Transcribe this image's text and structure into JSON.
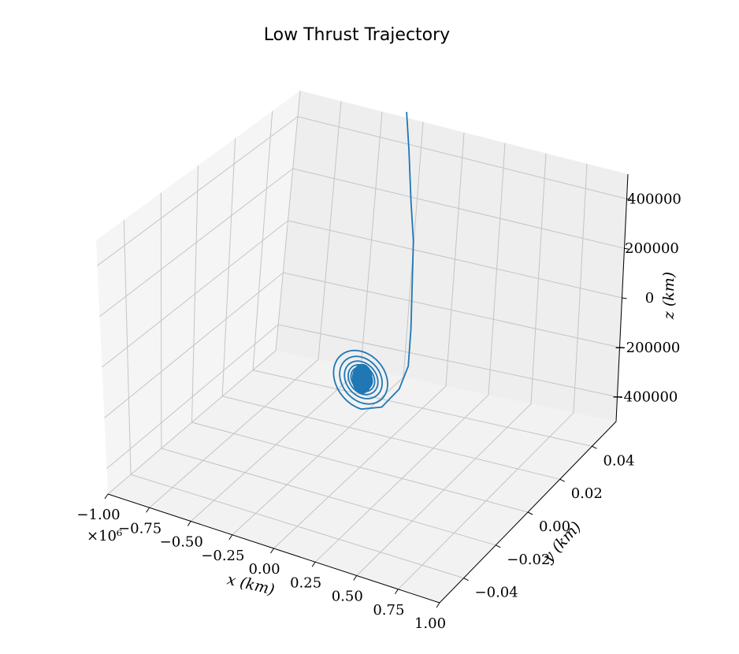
{
  "chart_data": {
    "type": "line3d",
    "title": "Low Thrust Trajectory",
    "xlabel": "x (km)",
    "ylabel": "y (km)",
    "zlabel": "z (km)",
    "x_offset_label": "×10⁶",
    "x_ticks": [
      -1.0,
      -0.75,
      -0.5,
      -0.25,
      0.0,
      0.25,
      0.5,
      0.75,
      1.0
    ],
    "x_tick_labels": [
      "−1.00",
      "−0.75",
      "−0.50",
      "−0.25",
      "0.00",
      "0.25",
      "0.50",
      "0.75",
      "1.00"
    ],
    "y_ticks": [
      -0.04,
      -0.02,
      0.0,
      0.02,
      0.04
    ],
    "y_tick_labels": [
      "−0.04",
      "−0.02",
      "0.00",
      "0.02",
      "0.04"
    ],
    "z_ticks": [
      -400000,
      -200000,
      0,
      200000,
      400000
    ],
    "z_tick_labels": [
      "−400000",
      "−200000",
      "0",
      "200000",
      "400000"
    ],
    "xlim": [
      -1.0,
      1.0
    ],
    "ylim": [
      -0.055,
      0.055
    ],
    "zlim": [
      -500000,
      500000
    ],
    "grid": true,
    "series": [
      {
        "color": "#1f77b4",
        "spiral": {
          "center_x": 0.0,
          "center_z": -150000,
          "start_rx": 0.04,
          "start_rz": 28000,
          "end_rx": 0.18,
          "end_rz": 120000,
          "turns": 10
        },
        "escape_leg": [
          {
            "x": 0.0,
            "z": -270000
          },
          {
            "x": 0.12,
            "z": -240000
          },
          {
            "x": 0.22,
            "z": -150000
          },
          {
            "x": 0.27,
            "z": -50000
          },
          {
            "x": 0.28,
            "z": 100000
          },
          {
            "x": 0.28,
            "z": 300000
          },
          {
            "x": 0.28,
            "z": 450000
          },
          {
            "x": 0.26,
            "z": 600000
          },
          {
            "x": 0.24,
            "z": 800000
          },
          {
            "x": 0.22,
            "z": 950000
          }
        ]
      }
    ]
  }
}
